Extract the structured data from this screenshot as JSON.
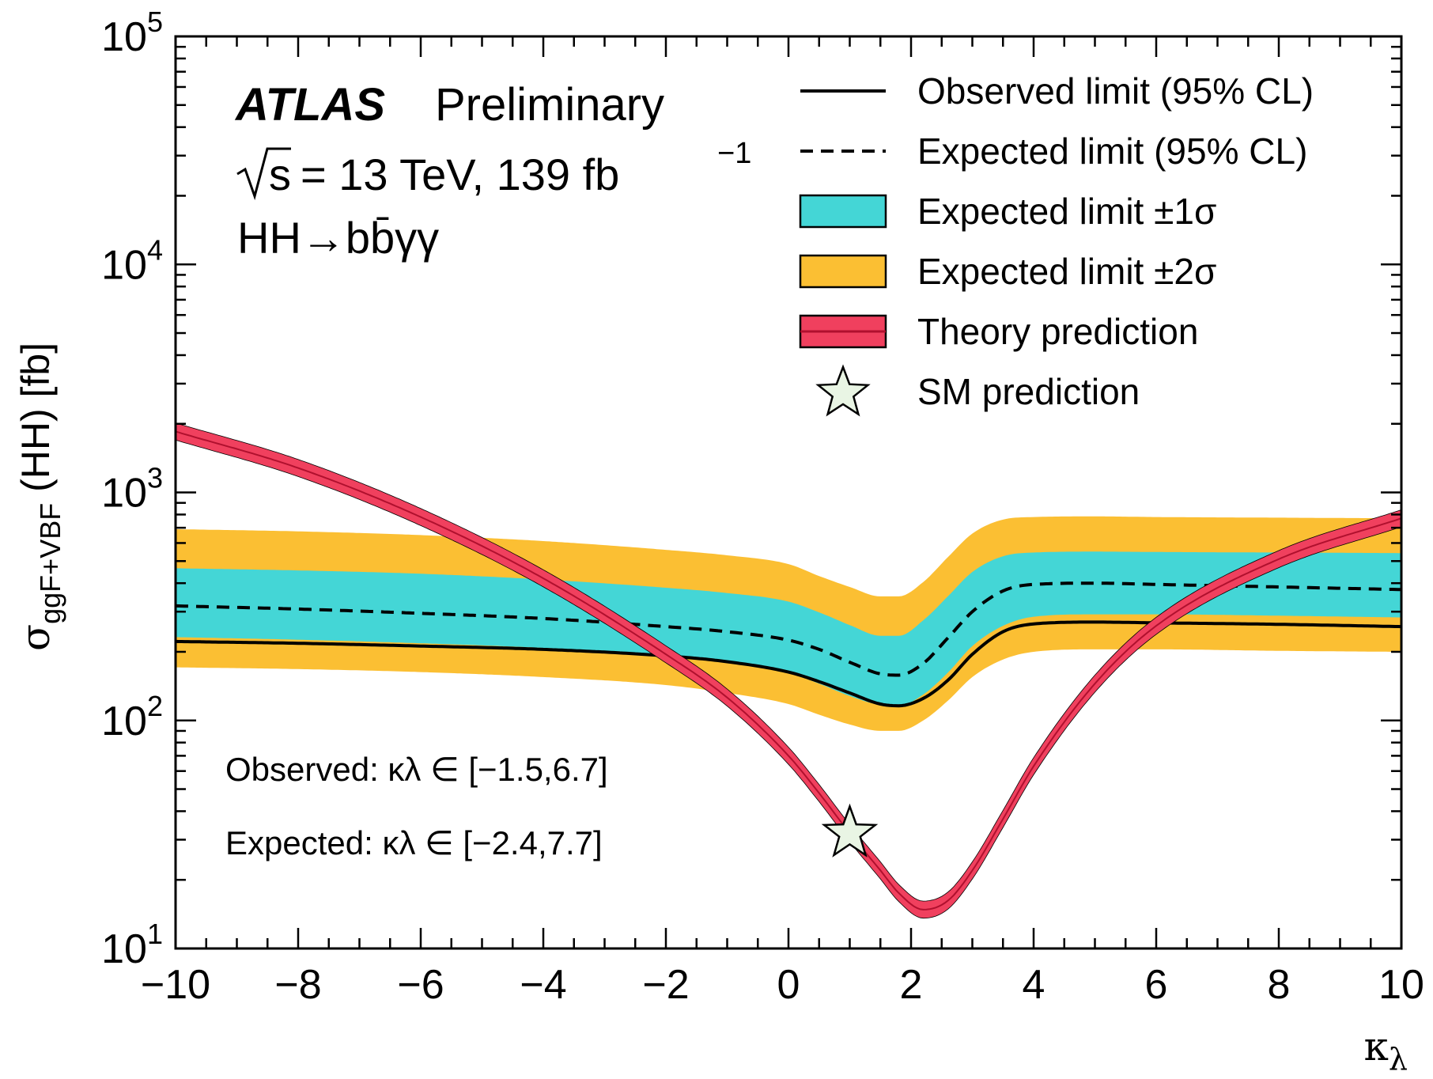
{
  "chart_data": {
    "type": "line",
    "title": "",
    "xlabel": "κλ",
    "ylabel": "σggF+VBF (HH) [fb]",
    "xlim": [
      -10,
      10
    ],
    "ylim": [
      10,
      100000
    ],
    "yscale": "log",
    "grid": false,
    "legend_position": "top-right",
    "x_ticks": [
      -10,
      -8,
      -6,
      -4,
      -2,
      0,
      2,
      4,
      6,
      8,
      10
    ],
    "x_tick_labels": [
      "−10",
      "−8",
      "−6",
      "−4",
      "−2",
      "0",
      "2",
      "4",
      "6",
      "8",
      "10"
    ],
    "y_ticks": [
      10,
      100,
      1000,
      10000,
      100000
    ],
    "y_tick_labels": [
      {
        "base": "10",
        "exp": "1"
      },
      {
        "base": "10",
        "exp": "2"
      },
      {
        "base": "10",
        "exp": "3"
      },
      {
        "base": "10",
        "exp": "4"
      },
      {
        "base": "10",
        "exp": "5"
      }
    ],
    "annotations": {
      "experiment": "ATLAS",
      "status": "Preliminary",
      "energy_line": "= 13 TeV, 139 fb",
      "energy_symbol": "s",
      "lumi_exp": "−1",
      "process": "HH→bb̄γγ",
      "observed_interval": "Observed: κλ ∈ [−1.5,6.7]",
      "expected_interval": "Expected: κλ ∈ [−2.4,7.7]"
    },
    "x": [
      -10,
      -8,
      -6,
      -4,
      -2,
      -1,
      0,
      0.5,
      1,
      1.5,
      1.8,
      2.2,
      2.6,
      3,
      3.5,
      4,
      5,
      6,
      8,
      10
    ],
    "series": [
      {
        "name": "Observed limit (95% CL)",
        "color": "#000000",
        "style": "solid",
        "values": [
          222,
          218,
          212,
          205,
          192,
          181,
          163,
          148,
          132,
          118,
          116,
          125,
          150,
          195,
          245,
          265,
          270,
          268,
          264,
          258
        ]
      },
      {
        "name": "Expected limit (95% CL)",
        "color": "#000000",
        "style": "dashed",
        "values": [
          318,
          308,
          295,
          280,
          258,
          245,
          225,
          205,
          180,
          160,
          158,
          178,
          230,
          300,
          370,
          395,
          400,
          395,
          385,
          375
        ]
      },
      {
        "name": "Theory prediction",
        "color": "#dd1144",
        "style": "solid",
        "values": [
          1850,
          1280,
          780,
          420,
          195,
          126,
          70,
          48,
          32,
          22,
          17.5,
          14.8,
          16.2,
          22,
          37,
          63,
          145,
          260,
          510,
          770
        ]
      }
    ],
    "bands": [
      {
        "name": "Expected limit ±2σ",
        "color": "#fbbf33",
        "lower": [
          171,
          168,
          163,
          155,
          143,
          132,
          118,
          106,
          96,
          90,
          90,
          100,
          122,
          155,
          185,
          200,
          205,
          205,
          202,
          200
        ],
        "upper": [
          690,
          675,
          650,
          612,
          560,
          530,
          485,
          430,
          385,
          350,
          350,
          405,
          520,
          660,
          760,
          780,
          785,
          780,
          775,
          770
        ]
      },
      {
        "name": "Expected limit ±1σ",
        "color": "#44d6d6",
        "lower": [
          232,
          226,
          218,
          208,
          193,
          180,
          162,
          145,
          128,
          117,
          116,
          130,
          162,
          212,
          260,
          285,
          292,
          292,
          288,
          283
        ],
        "upper": [
          465,
          455,
          440,
          415,
          382,
          362,
          332,
          298,
          262,
          235,
          235,
          275,
          350,
          448,
          525,
          545,
          550,
          548,
          545,
          542
        ]
      }
    ],
    "sm_point": {
      "name": "SM prediction",
      "x": 1,
      "y": 32,
      "color": "#e9f5e4"
    },
    "legend": [
      {
        "label": "Observed limit (95% CL)",
        "kind": "solid"
      },
      {
        "label": "Expected limit (95% CL)",
        "kind": "dashed"
      },
      {
        "label": "Expected limit ±1σ",
        "kind": "band1"
      },
      {
        "label": "Expected limit ±2σ",
        "kind": "band2"
      },
      {
        "label": "Theory prediction",
        "kind": "theory"
      },
      {
        "label": "SM prediction",
        "kind": "star"
      }
    ]
  }
}
